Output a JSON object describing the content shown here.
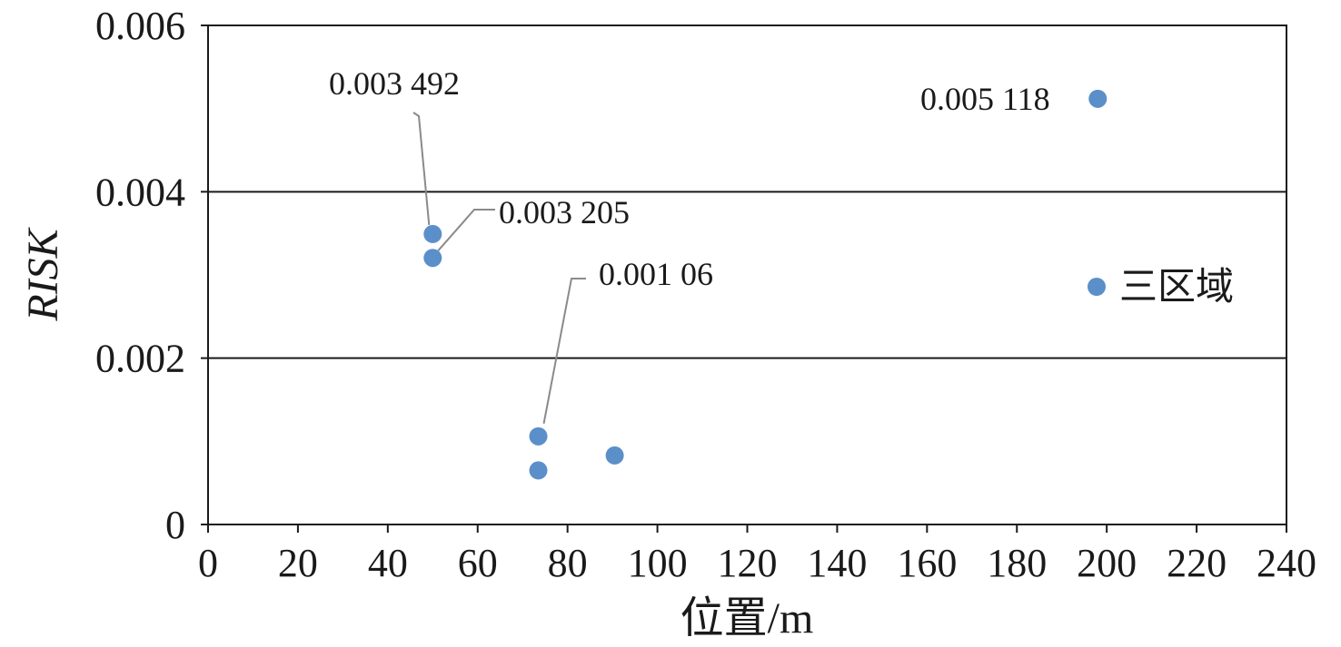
{
  "chart_data": {
    "type": "scatter",
    "xlabel": "位置/m",
    "ylabel": "RISK",
    "xlim": [
      0,
      240
    ],
    "ylim": [
      0,
      0.006
    ],
    "x_ticks": [
      "0",
      "20",
      "40",
      "60",
      "80",
      "100",
      "120",
      "140",
      "160",
      "180",
      "200",
      "220",
      "240"
    ],
    "y_ticks": [
      "0",
      "0.002",
      "0.004",
      "0.006"
    ],
    "grid": "horizontal",
    "legend": "right",
    "color": "#5b8fc9",
    "series": [
      {
        "name": "三区域",
        "points": [
          {
            "x": 50,
            "y": 0.003492
          },
          {
            "x": 50,
            "y": 0.003205
          },
          {
            "x": 73.5,
            "y": 0.00106
          },
          {
            "x": 73.5,
            "y": 0.00065
          },
          {
            "x": 90.5,
            "y": 0.00083
          },
          {
            "x": 198,
            "y": 0.005118
          }
        ]
      }
    ],
    "annotations": [
      "0.003 492",
      "0.003 205",
      "0.001 06",
      "0.005 118"
    ]
  }
}
